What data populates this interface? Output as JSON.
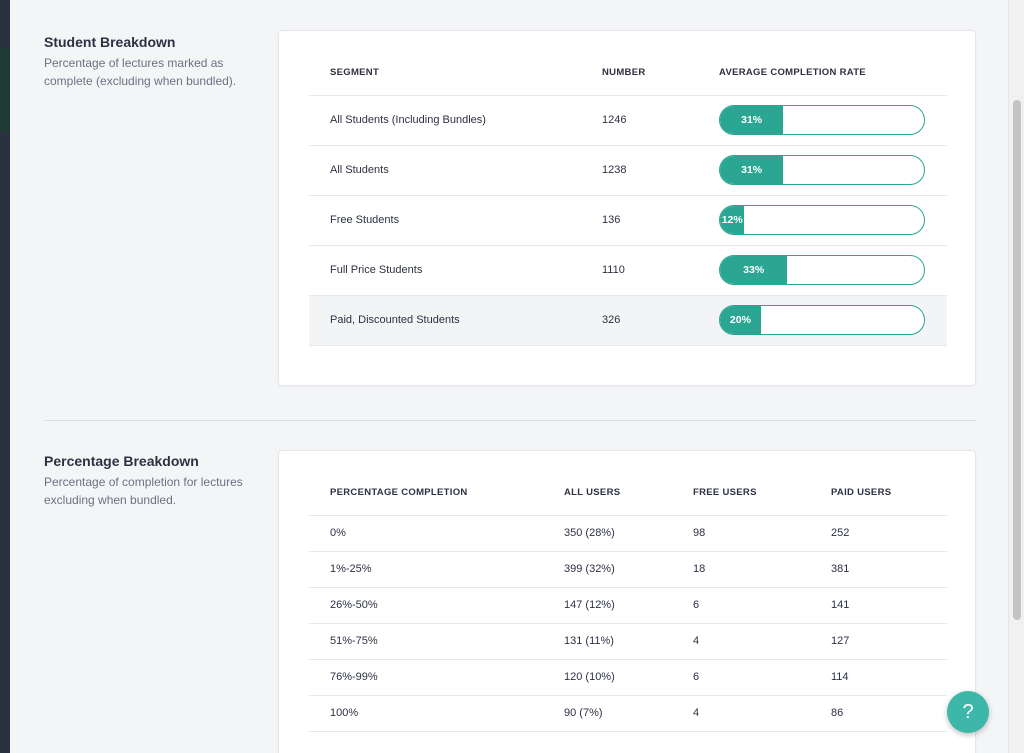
{
  "student_breakdown": {
    "title": "Student Breakdown",
    "description": "Percentage of lectures marked as complete (excluding when bundled).",
    "columns": [
      "SEGMENT",
      "NUMBER",
      "AVERAGE COMPLETION RATE"
    ],
    "rows": [
      {
        "segment": "All Students (Including Bundles)",
        "number": "1246",
        "rate_label": "31%",
        "rate": 31
      },
      {
        "segment": "All Students",
        "number": "1238",
        "rate_label": "31%",
        "rate": 31
      },
      {
        "segment": "Free Students",
        "number": "136",
        "rate_label": "12%",
        "rate": 12
      },
      {
        "segment": "Full Price Students",
        "number": "1110",
        "rate_label": "33%",
        "rate": 33
      },
      {
        "segment": "Paid, Discounted Students",
        "number": "326",
        "rate_label": "20%",
        "rate": 20
      }
    ]
  },
  "percentage_breakdown": {
    "title": "Percentage Breakdown",
    "description": "Percentage of completion for lectures excluding when bundled.",
    "columns": [
      "PERCENTAGE COMPLETION",
      "ALL USERS",
      "FREE USERS",
      "PAID USERS"
    ],
    "rows": [
      [
        "0%",
        "350 (28%)",
        "98",
        "252"
      ],
      [
        "1%-25%",
        "399 (32%)",
        "18",
        "381"
      ],
      [
        "26%-50%",
        "147 (12%)",
        "6",
        "141"
      ],
      [
        "51%-75%",
        "131 (11%)",
        "4",
        "127"
      ],
      [
        "76%-99%",
        "120 (10%)",
        "6",
        "114"
      ],
      [
        "100%",
        "90 (7%)",
        "4",
        "86"
      ]
    ]
  },
  "help_button": {
    "label": "?"
  },
  "colors": {
    "accent": "#2aa693",
    "help": "#3cb7aa"
  }
}
